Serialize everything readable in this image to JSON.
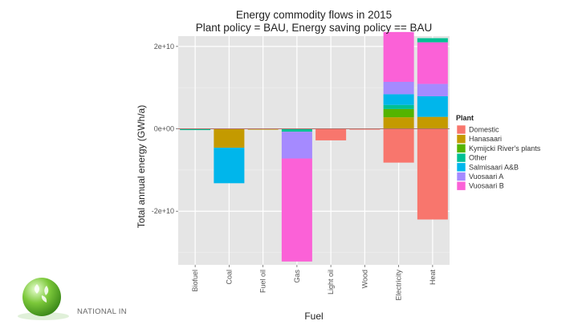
{
  "chart_data": {
    "type": "bar",
    "stacked": true,
    "title": "Energy commodity flows in 2015",
    "subtitle": "Plant policy = BAU, Energy saving policy == BAU",
    "xlabel": "Fuel",
    "ylabel": "Total annual energy (GWh/a)",
    "categories": [
      "Biofuel",
      "Coal",
      "Fuel oil",
      "Gas",
      "Light oil",
      "Wood",
      "Electricity",
      "Heat"
    ],
    "ylim": [
      -33000000000,
      22500000000
    ],
    "yticks": [
      -20000000000,
      0,
      20000000000
    ],
    "ytick_labels": [
      "-2e+10",
      "0e+00",
      "2e+10"
    ],
    "legend_title": "Plant",
    "legend_position": "right",
    "series": [
      {
        "name": "Domestic",
        "color": "#F8766D",
        "values": [
          0,
          0,
          0,
          0,
          -2800000000,
          -200000000,
          -8200000000,
          -22000000000
        ],
        "pos_values": [
          0,
          0,
          0,
          0,
          0,
          0,
          0,
          0
        ]
      },
      {
        "name": "Hanasaari",
        "color": "#C49A00",
        "values": [
          0,
          -4600000000,
          -200000000,
          0,
          0,
          0,
          0,
          0
        ],
        "pos_values": [
          0,
          0,
          0,
          0,
          0,
          0,
          2800000000,
          2900000000
        ]
      },
      {
        "name": "Kymijcki River's plants",
        "color": "#53B400",
        "values": [
          0,
          0,
          0,
          0,
          0,
          0,
          0,
          0
        ],
        "pos_values": [
          0,
          0,
          0,
          0,
          0,
          0,
          2000000000,
          0
        ]
      },
      {
        "name": "Other",
        "color": "#00C094",
        "values": [
          -300000000,
          0,
          0,
          -700000000,
          0,
          0,
          0,
          0
        ],
        "pos_values": [
          0,
          0,
          0,
          0,
          0,
          0,
          1000000000,
          0
        ]
      },
      {
        "name": "Salmisaari A&B",
        "color": "#00B6EB",
        "values": [
          0,
          -8600000000,
          0,
          0,
          0,
          0,
          0,
          0
        ],
        "pos_values": [
          0,
          0,
          0,
          0,
          0,
          0,
          2600000000,
          5000000000
        ]
      },
      {
        "name": "Vuosaari A",
        "color": "#A58AFF",
        "values": [
          0,
          0,
          0,
          -6500000000,
          0,
          0,
          0,
          0
        ],
        "pos_values": [
          0,
          0,
          0,
          0,
          0,
          0,
          3000000000,
          3000000000
        ]
      },
      {
        "name": "Vuosaari B",
        "color": "#FB61D7",
        "values": [
          0,
          0,
          0,
          -25000000000,
          0,
          0,
          0,
          0
        ],
        "pos_values": [
          0,
          0,
          0,
          0,
          0,
          0,
          12100000000,
          10100000000
        ]
      }
    ],
    "extra_heat_top": {
      "name": "Other",
      "color": "#00C094",
      "value": 1000000000
    }
  },
  "footer": {
    "org_text": "NATIONAL IN"
  }
}
